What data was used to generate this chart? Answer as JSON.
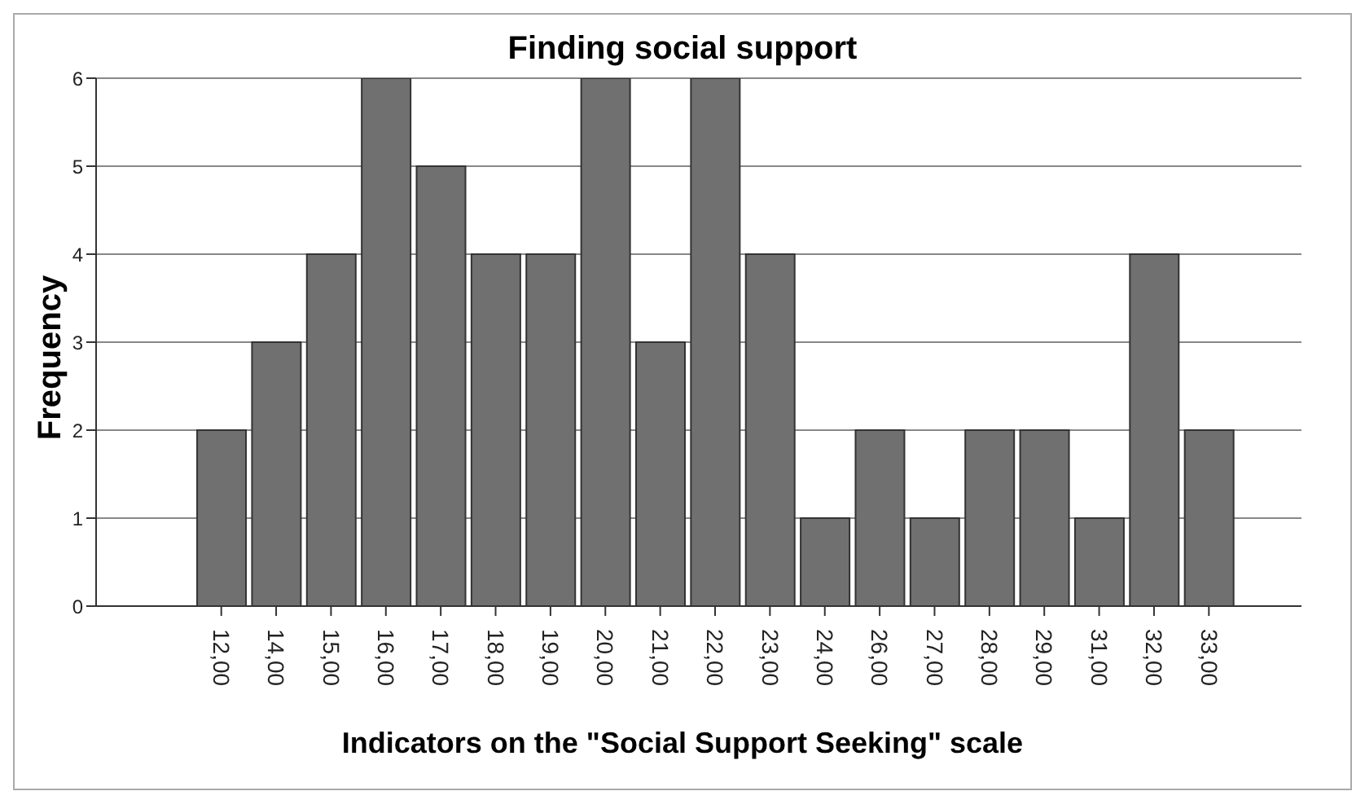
{
  "chart_data": {
    "type": "bar",
    "title": "Finding social support",
    "xlabel": "Indicators on the \"Social Support Seeking\" scale",
    "ylabel": "Frequency",
    "categories": [
      "12,00",
      "14,00",
      "15,00",
      "16,00",
      "17,00",
      "18,00",
      "19,00",
      "20,00",
      "21,00",
      "22,00",
      "23,00",
      "24,00",
      "26,00",
      "27,00",
      "28,00",
      "29,00",
      "31,00",
      "32,00",
      "33,00"
    ],
    "values": [
      2,
      3,
      4,
      6,
      5,
      4,
      4,
      6,
      3,
      6,
      4,
      1,
      2,
      1,
      2,
      2,
      1,
      4,
      2
    ],
    "color": "#707070",
    "ylim": [
      0,
      6
    ],
    "yticks": [
      0,
      1,
      2,
      3,
      4,
      5,
      6
    ],
    "grid": "y"
  }
}
